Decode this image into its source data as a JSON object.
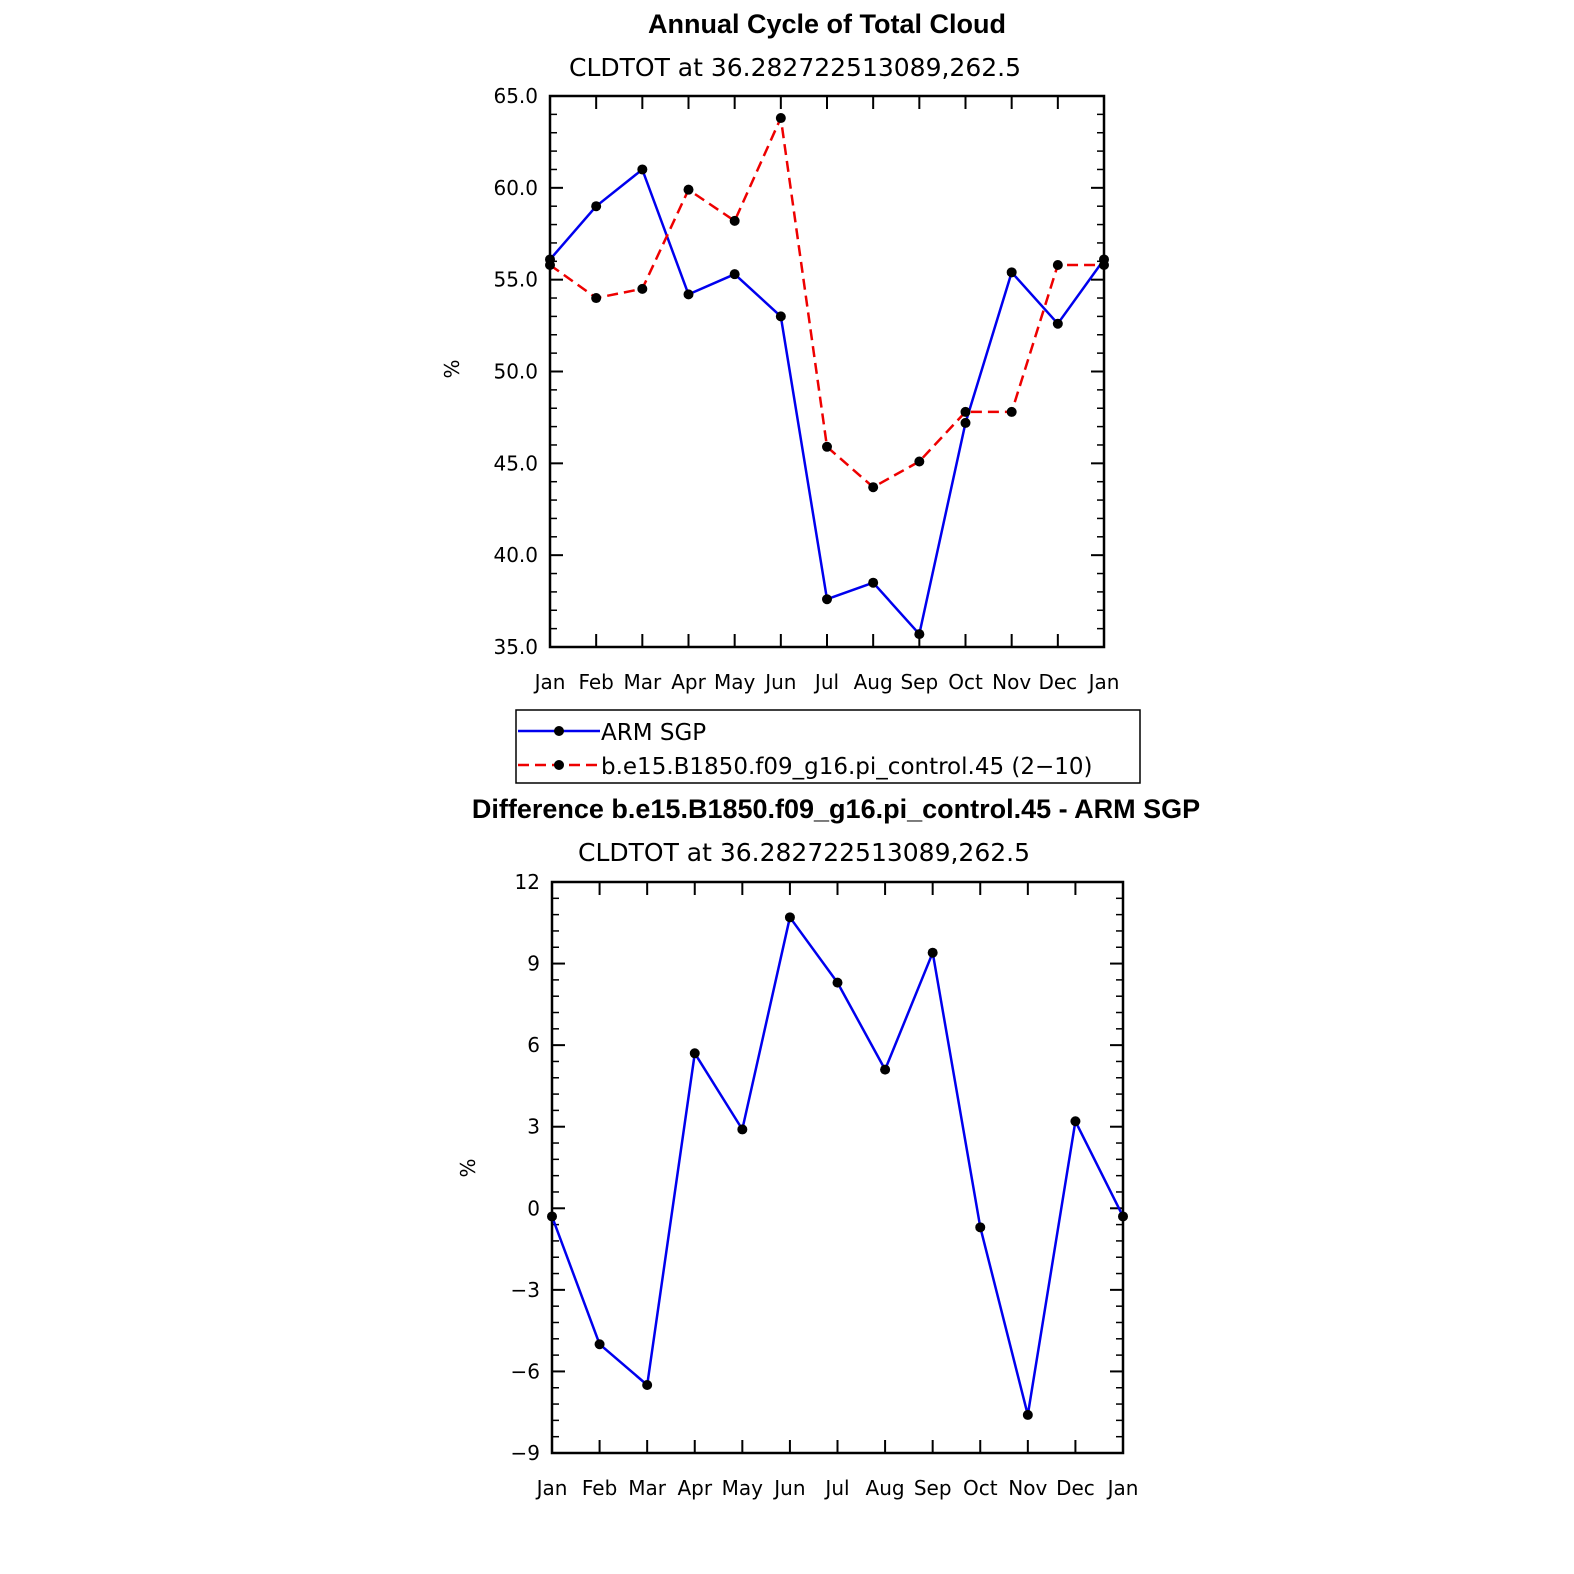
{
  "chart_data": [
    {
      "type": "line",
      "title": "Annual Cycle of Total Cloud",
      "subtitle": "CLDTOT at 36.282722513089,262.5",
      "xlabel": "",
      "ylabel": "%",
      "categories": [
        "Jan",
        "Feb",
        "Mar",
        "Apr",
        "May",
        "Jun",
        "Jul",
        "Aug",
        "Sep",
        "Oct",
        "Nov",
        "Dec",
        "Jan"
      ],
      "ylim": [
        35,
        65
      ],
      "yticks": [
        35,
        40,
        45,
        50,
        55,
        60,
        65
      ],
      "ytick_labels": [
        "35.0",
        "40.0",
        "45.0",
        "50.0",
        "55.0",
        "60.0",
        "65.0"
      ],
      "series": [
        {
          "name": "ARM SGP",
          "color": "#0000ee",
          "dash": "solid",
          "values": [
            56.1,
            59.0,
            61.0,
            54.2,
            55.3,
            53.0,
            37.6,
            38.5,
            35.7,
            47.2,
            55.4,
            52.6,
            56.1
          ]
        },
        {
          "name": "b.e15.B1850.f09_g16.pi_control.45 (2−10)",
          "color": "#ee0000",
          "dash": "dashed",
          "values": [
            55.8,
            54.0,
            54.5,
            59.9,
            58.2,
            63.8,
            45.9,
            43.7,
            45.1,
            47.8,
            47.8,
            55.8,
            55.8
          ]
        }
      ],
      "legend": "below"
    },
    {
      "type": "line",
      "title": "Difference b.e15.B1850.f09_g16.pi_control.45 - ARM SGP",
      "subtitle": "CLDTOT at 36.282722513089,262.5",
      "xlabel": "",
      "ylabel": "%",
      "categories": [
        "Jan",
        "Feb",
        "Mar",
        "Apr",
        "May",
        "Jun",
        "Jul",
        "Aug",
        "Sep",
        "Oct",
        "Nov",
        "Dec",
        "Jan"
      ],
      "ylim": [
        -9,
        12
      ],
      "yticks": [
        -9,
        -6,
        -3,
        0,
        3,
        6,
        9,
        12
      ],
      "ytick_labels": [
        "−9",
        "−6",
        "−3",
        "0",
        "3",
        "6",
        "9",
        "12"
      ],
      "series": [
        {
          "color": "#0000ee",
          "dash": "solid",
          "values": [
            -0.3,
            -5.0,
            -6.5,
            5.7,
            2.9,
            10.7,
            8.3,
            5.1,
            9.4,
            -0.7,
            -7.6,
            3.2,
            -0.3
          ]
        }
      ]
    }
  ]
}
